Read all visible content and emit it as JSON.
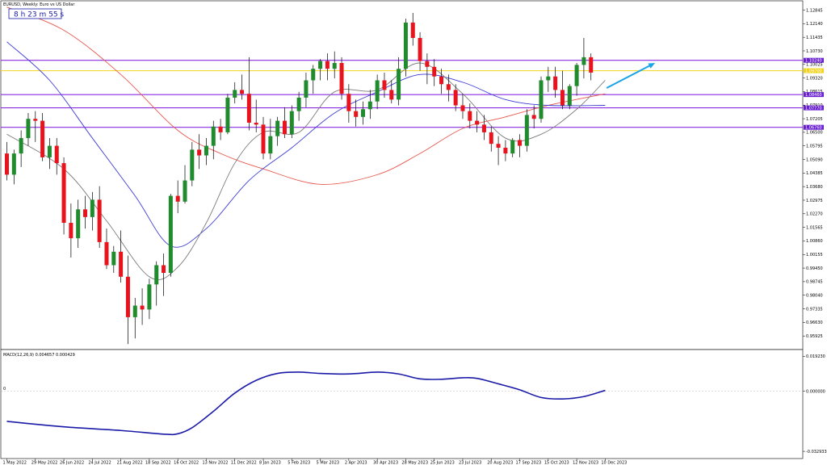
{
  "window": {
    "title": "EURUSD, Weekly: Euro vs US Dollar"
  },
  "countdown": "8 h 23 m 55 s",
  "colors": {
    "bull": "#1f8b2c",
    "bear": "#e8131c",
    "wick": "#000000",
    "ma_fast": "#7a7a7a",
    "ma_mid": "#3b3bd6",
    "ma_slow": "#e8584f",
    "hline": "#8a2be2",
    "yellow": "#f2d31b",
    "arrow": "#1aa3e8",
    "macd": "#1a1aa8",
    "axis_tag": "#6a1fd1"
  },
  "chart_data": {
    "type": "candlestick",
    "price_axis_ticks": [
      "1.12845",
      "1.12140",
      "1.11435",
      "1.10730",
      "1.10025",
      "1.09320",
      "1.08615",
      "1.07910",
      "1.07205",
      "1.06500",
      "1.05795",
      "1.05090",
      "1.04385",
      "1.03680",
      "1.02975",
      "1.02270",
      "1.01565",
      "1.00860",
      "1.00155",
      "0.99450",
      "0.98745",
      "0.98040",
      "0.97335",
      "0.96630",
      "0.95925"
    ],
    "ylim": [
      0.95345,
      1.13245
    ],
    "date_labels": [
      "1 May 2022",
      "29 May 2022",
      "26 Jun 2022",
      "24 Jul 2022",
      "21 Aug 2022",
      "18 Sep 2022",
      "16 Oct 2022",
      "13 Nov 2022",
      "11 Dec 2022",
      "8 Jan 2023",
      "5 Feb 2023",
      "5 Mar 2023",
      "2 Apr 2023",
      "30 Apr 2023",
      "28 May 2023",
      "25 Jun 2023",
      "23 Jul 2023",
      "20 Aug 2023",
      "17 Sep 2023",
      "15 Oct 2023",
      "12 Nov 2023",
      "10 Dec 2023"
    ],
    "candles": [
      [
        1.054,
        1.06,
        1.04,
        1.043
      ],
      [
        1.043,
        1.056,
        1.038,
        1.054
      ],
      [
        1.054,
        1.066,
        1.047,
        1.062
      ],
      [
        1.062,
        1.075,
        1.058,
        1.072
      ],
      [
        1.072,
        1.076,
        1.06,
        1.071
      ],
      [
        1.071,
        1.075,
        1.05,
        1.052
      ],
      [
        1.052,
        1.062,
        1.046,
        1.058
      ],
      [
        1.058,
        1.062,
        1.043,
        1.049
      ],
      [
        1.049,
        1.052,
        1.012,
        1.018
      ],
      [
        1.018,
        1.028,
        1.0,
        1.01
      ],
      [
        1.01,
        1.03,
        1.005,
        1.025
      ],
      [
        1.025,
        1.032,
        1.015,
        1.021
      ],
      [
        1.021,
        1.034,
        1.014,
        1.03
      ],
      [
        1.03,
        1.037,
        1.005,
        1.008
      ],
      [
        1.008,
        1.015,
        0.994,
        0.996
      ],
      [
        0.996,
        1.006,
        0.992,
        1.003
      ],
      [
        1.003,
        1.014,
        0.987,
        0.99
      ],
      [
        0.99,
        1.001,
        0.955,
        0.969
      ],
      [
        0.969,
        0.979,
        0.958,
        0.975
      ],
      [
        0.975,
        0.984,
        0.965,
        0.973
      ],
      [
        0.973,
        0.989,
        0.968,
        0.986
      ],
      [
        0.986,
        0.998,
        0.975,
        0.996
      ],
      [
        0.996,
        1.002,
        0.98,
        0.992
      ],
      [
        0.992,
        1.033,
        0.99,
        1.032
      ],
      [
        1.032,
        1.04,
        1.023,
        1.029
      ],
      [
        1.029,
        1.048,
        1.028,
        1.04
      ],
      [
        1.04,
        1.06,
        1.037,
        1.056
      ],
      [
        1.056,
        1.064,
        1.046,
        1.053
      ],
      [
        1.053,
        1.062,
        1.048,
        1.058
      ],
      [
        1.058,
        1.071,
        1.051,
        1.068
      ],
      [
        1.068,
        1.072,
        1.061,
        1.065
      ],
      [
        1.065,
        1.085,
        1.064,
        1.083
      ],
      [
        1.083,
        1.091,
        1.08,
        1.087
      ],
      [
        1.087,
        1.095,
        1.082,
        1.085
      ],
      [
        1.085,
        1.104,
        1.066,
        1.07
      ],
      [
        1.07,
        1.082,
        1.065,
        1.069
      ],
      [
        1.069,
        1.073,
        1.051,
        1.054
      ],
      [
        1.054,
        1.072,
        1.051,
        1.063
      ],
      [
        1.063,
        1.073,
        1.058,
        1.071
      ],
      [
        1.071,
        1.078,
        1.062,
        1.064
      ],
      [
        1.064,
        1.079,
        1.062,
        1.076
      ],
      [
        1.076,
        1.086,
        1.071,
        1.083
      ],
      [
        1.083,
        1.096,
        1.078,
        1.092
      ],
      [
        1.092,
        1.1,
        1.085,
        1.098
      ],
      [
        1.098,
        1.103,
        1.092,
        1.102
      ],
      [
        1.102,
        1.106,
        1.092,
        1.098
      ],
      [
        1.098,
        1.107,
        1.093,
        1.101
      ],
      [
        1.101,
        1.104,
        1.082,
        1.085
      ],
      [
        1.085,
        1.09,
        1.07,
        1.076
      ],
      [
        1.076,
        1.082,
        1.068,
        1.073
      ],
      [
        1.073,
        1.081,
        1.069,
        1.077
      ],
      [
        1.077,
        1.087,
        1.072,
        1.081
      ],
      [
        1.081,
        1.095,
        1.077,
        1.092
      ],
      [
        1.092,
        1.096,
        1.083,
        1.087
      ],
      [
        1.087,
        1.092,
        1.08,
        1.082
      ],
      [
        1.082,
        1.104,
        1.079,
        1.098
      ],
      [
        1.098,
        1.124,
        1.094,
        1.122
      ],
      [
        1.122,
        1.127,
        1.11,
        1.114
      ],
      [
        1.114,
        1.117,
        1.097,
        1.102
      ],
      [
        1.102,
        1.106,
        1.09,
        1.099
      ],
      [
        1.099,
        1.103,
        1.089,
        1.094
      ],
      [
        1.094,
        1.098,
        1.085,
        1.09
      ],
      [
        1.09,
        1.095,
        1.081,
        1.087
      ],
      [
        1.087,
        1.09,
        1.076,
        1.079
      ],
      [
        1.079,
        1.085,
        1.072,
        1.076
      ],
      [
        1.076,
        1.08,
        1.067,
        1.071
      ],
      [
        1.071,
        1.076,
        1.065,
        1.069
      ],
      [
        1.069,
        1.074,
        1.061,
        1.065
      ],
      [
        1.065,
        1.068,
        1.055,
        1.059
      ],
      [
        1.059,
        1.063,
        1.048,
        1.057
      ],
      [
        1.057,
        1.061,
        1.05,
        1.054
      ],
      [
        1.054,
        1.062,
        1.052,
        1.061
      ],
      [
        1.061,
        1.064,
        1.052,
        1.058
      ],
      [
        1.058,
        1.077,
        1.055,
        1.074
      ],
      [
        1.074,
        1.079,
        1.067,
        1.072
      ],
      [
        1.072,
        1.094,
        1.07,
        1.092
      ],
      [
        1.092,
        1.099,
        1.086,
        1.094
      ],
      [
        1.094,
        1.099,
        1.083,
        1.087
      ],
      [
        1.087,
        1.097,
        1.077,
        1.079
      ],
      [
        1.079,
        1.09,
        1.077,
        1.089
      ],
      [
        1.089,
        1.101,
        1.084,
        1.1
      ],
      [
        1.1,
        1.114,
        1.093,
        1.104
      ],
      [
        1.104,
        1.106,
        1.092,
        1.096
      ]
    ],
    "ma_fast": [
      [
        0,
        1.064
      ],
      [
        8,
        1.046
      ],
      [
        14,
        1.019
      ],
      [
        20,
        0.99
      ],
      [
        24,
        0.995
      ],
      [
        28,
        1.018
      ],
      [
        32,
        1.049
      ],
      [
        36,
        1.065
      ],
      [
        41,
        1.065
      ],
      [
        46,
        1.086
      ],
      [
        52,
        1.087
      ],
      [
        58,
        1.101
      ],
      [
        64,
        1.085
      ],
      [
        70,
        1.062
      ],
      [
        75,
        1.064
      ],
      [
        80,
        1.077
      ],
      [
        84,
        1.092
      ]
    ],
    "ma_mid": [
      [
        0,
        1.112
      ],
      [
        6,
        1.092
      ],
      [
        12,
        1.062
      ],
      [
        18,
        1.032
      ],
      [
        23,
        1.006
      ],
      [
        28,
        1.015
      ],
      [
        34,
        1.04
      ],
      [
        40,
        1.057
      ],
      [
        46,
        1.075
      ],
      [
        52,
        1.086
      ],
      [
        58,
        1.095
      ],
      [
        64,
        1.091
      ],
      [
        70,
        1.082
      ],
      [
        76,
        1.079
      ],
      [
        84,
        1.079
      ]
    ],
    "ma_slow": [
      [
        0,
        1.13
      ],
      [
        8,
        1.118
      ],
      [
        16,
        1.095
      ],
      [
        24,
        1.066
      ],
      [
        30,
        1.054
      ],
      [
        36,
        1.046
      ],
      [
        44,
        1.038
      ],
      [
        52,
        1.043
      ],
      [
        58,
        1.054
      ],
      [
        64,
        1.067
      ],
      [
        70,
        1.073
      ],
      [
        76,
        1.079
      ],
      [
        84,
        1.085
      ]
    ],
    "hlines": [
      1.1024,
      1.0846,
      1.0777,
      1.0676
    ],
    "yellow_line": 1.097,
    "arrow": {
      "from": [
        84.2,
        1.088
      ],
      "to": [
        91,
        1.101
      ]
    },
    "price_tags": [
      1.1024,
      1.097,
      1.0846,
      1.0777,
      1.0676
    ],
    "macd": {
      "label": "MACD(12,26,9) 0.004657 0.000429",
      "ticks": [
        "0.019230",
        "0.000000",
        "-0.032933"
      ],
      "zero_label": "0",
      "ylim": [
        -0.036,
        0.022
      ],
      "line": [
        [
          0,
          -0.0165
        ],
        [
          8,
          -0.0195
        ],
        [
          16,
          -0.0215
        ],
        [
          22,
          -0.0235
        ],
        [
          24,
          -0.0233
        ],
        [
          26,
          -0.02
        ],
        [
          29,
          -0.011
        ],
        [
          32,
          -0.001
        ],
        [
          35,
          0.006
        ],
        [
          38,
          0.0098
        ],
        [
          41,
          0.0105
        ],
        [
          44,
          0.0098
        ],
        [
          48,
          0.0095
        ],
        [
          52,
          0.0105
        ],
        [
          55,
          0.0095
        ],
        [
          58,
          0.0068
        ],
        [
          61,
          0.0066
        ],
        [
          64,
          0.0074
        ],
        [
          66,
          0.0071
        ],
        [
          69,
          0.0041
        ],
        [
          72,
          0.0008
        ],
        [
          75,
          -0.0034
        ],
        [
          78,
          -0.0042
        ],
        [
          81,
          -0.0029
        ],
        [
          84,
          0.0005
        ]
      ]
    }
  }
}
